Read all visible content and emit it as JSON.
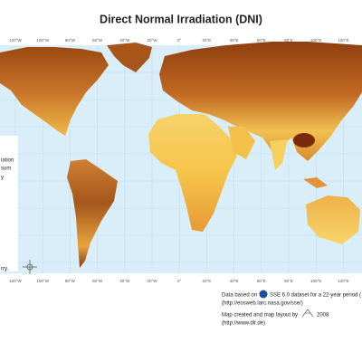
{
  "title": "Direct Normal Irradiation (DNI)",
  "longitude_labels_top": [
    "120°W",
    "100°W",
    "80°W",
    "60°W",
    "40°W",
    "20°W",
    "0°",
    "20°E",
    "40°E",
    "60°E",
    "80°E",
    "100°E",
    "120°E",
    "140°"
  ],
  "longitude_labels_bottom": [
    "120°W",
    "100°W",
    "80°W",
    "60°W",
    "40°W",
    "20°W",
    "0°",
    "20°E",
    "40°E",
    "60°E",
    "80°E",
    "100°E",
    "120°E",
    "140°"
  ],
  "legend_fragments": [
    "iation",
    "sum",
    "y",
    "rry."
  ],
  "credits": {
    "data_prefix": "Data based on",
    "data_suffix": "SSE 6.0 dataset for a 22-year period (",
    "data_url": "(http://eosweb.larc.nasa.gov/sse/)",
    "map_prefix": "Map created and map layout by",
    "map_year": "2008",
    "map_url": "(http://www.dlr.de)"
  }
}
